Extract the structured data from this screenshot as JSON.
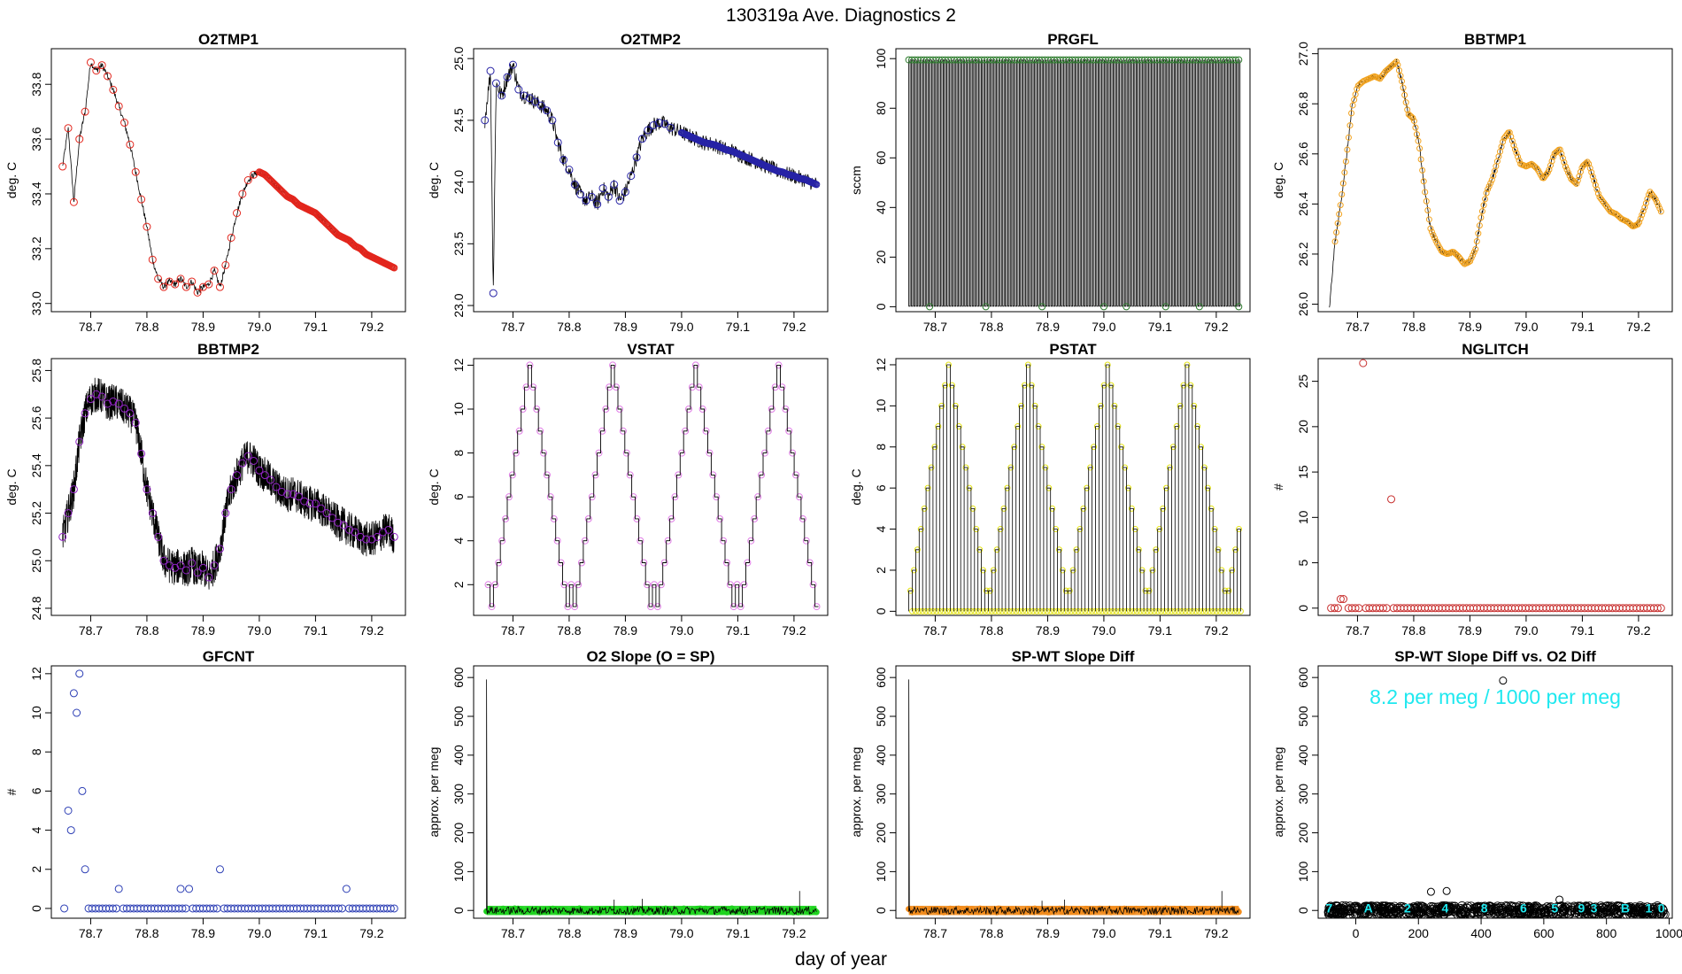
{
  "title": "130319a   Ave. Diagnostics 2",
  "xlabel": "day of year",
  "chart_data": [
    {
      "id": "o2tmp1",
      "type": "line",
      "title": "O2TMP1",
      "ylabel": "deg. C",
      "xlim": [
        78.63,
        79.26
      ],
      "ylim": [
        32.97,
        33.93
      ],
      "xticks": [
        "78.7",
        "78.8",
        "78.9",
        "79.0",
        "79.1",
        "79.2"
      ],
      "yticks": [
        "33.0",
        "33.2",
        "33.4",
        "33.6",
        "33.8"
      ],
      "point_color": "#e3261d",
      "x": [
        78.65,
        78.66,
        78.67,
        78.68,
        78.69,
        78.7,
        78.71,
        78.72,
        78.73,
        78.74,
        78.75,
        78.76,
        78.77,
        78.78,
        78.79,
        78.8,
        78.81,
        78.82,
        78.83,
        78.84,
        78.85,
        78.86,
        78.87,
        78.88,
        78.89,
        78.9,
        78.91,
        78.92,
        78.93,
        78.94,
        78.95,
        78.96,
        78.97,
        78.98,
        78.99,
        79.0,
        79.01,
        79.02,
        79.03,
        79.04,
        79.05,
        79.06,
        79.07,
        79.08,
        79.09,
        79.1,
        79.11,
        79.12,
        79.13,
        79.14,
        79.15,
        79.16,
        79.17,
        79.18,
        79.19,
        79.2,
        79.21,
        79.22,
        79.23,
        79.24
      ],
      "values": [
        33.5,
        33.64,
        33.37,
        33.6,
        33.7,
        33.88,
        33.85,
        33.87,
        33.83,
        33.78,
        33.72,
        33.66,
        33.58,
        33.48,
        33.38,
        33.28,
        33.16,
        33.09,
        33.06,
        33.08,
        33.07,
        33.09,
        33.06,
        33.08,
        33.04,
        33.06,
        33.07,
        33.12,
        33.06,
        33.14,
        33.24,
        33.33,
        33.4,
        33.45,
        33.47,
        33.48,
        33.47,
        33.45,
        33.43,
        33.41,
        33.39,
        33.38,
        33.36,
        33.35,
        33.34,
        33.33,
        33.31,
        33.29,
        33.27,
        33.25,
        33.24,
        33.23,
        33.21,
        33.2,
        33.18,
        33.17,
        33.16,
        33.15,
        33.14,
        33.13
      ]
    },
    {
      "id": "o2tmp2",
      "type": "line",
      "title": "O2TMP2",
      "ylabel": "deg. C",
      "xlim": [
        78.63,
        79.26
      ],
      "ylim": [
        22.95,
        25.08
      ],
      "xticks": [
        "78.7",
        "78.8",
        "78.9",
        "79.0",
        "79.1",
        "79.2"
      ],
      "yticks": [
        "23.0",
        "23.5",
        "24.0",
        "24.5",
        "25.0"
      ],
      "point_color": "#2723a6",
      "x": [
        78.65,
        78.66,
        78.665,
        78.67,
        78.68,
        78.69,
        78.7,
        78.71,
        78.72,
        78.73,
        78.74,
        78.75,
        78.76,
        78.77,
        78.78,
        78.79,
        78.8,
        78.81,
        78.82,
        78.83,
        78.84,
        78.85,
        78.86,
        78.87,
        78.88,
        78.89,
        78.9,
        78.91,
        78.92,
        78.93,
        78.94,
        78.95,
        78.96,
        78.97,
        78.98,
        78.99,
        79.0,
        79.01,
        79.02,
        79.03,
        79.04,
        79.05,
        79.06,
        79.07,
        79.08,
        79.09,
        79.1,
        79.11,
        79.12,
        79.13,
        79.14,
        79.15,
        79.16,
        79.17,
        79.18,
        79.19,
        79.2,
        79.21,
        79.22,
        79.23,
        79.24
      ],
      "values": [
        24.5,
        24.9,
        23.1,
        24.8,
        24.7,
        24.85,
        24.95,
        24.75,
        24.7,
        24.68,
        24.65,
        24.62,
        24.58,
        24.5,
        24.32,
        24.18,
        24.1,
        23.98,
        23.9,
        23.85,
        23.88,
        23.82,
        23.95,
        23.88,
        23.98,
        23.85,
        23.92,
        24.05,
        24.2,
        24.35,
        24.42,
        24.46,
        24.48,
        24.47,
        24.44,
        24.42,
        24.4,
        24.38,
        24.36,
        24.34,
        24.32,
        24.31,
        24.3,
        24.28,
        24.26,
        24.25,
        24.23,
        24.21,
        24.19,
        24.17,
        24.15,
        24.13,
        24.11,
        24.09,
        24.08,
        24.06,
        24.05,
        24.03,
        24.02,
        24.0,
        23.98
      ]
    },
    {
      "id": "prgfl",
      "type": "line",
      "title": "PRGFL",
      "ylabel": "sccm",
      "xlim": [
        78.63,
        79.26
      ],
      "ylim": [
        -2,
        104
      ],
      "xticks": [
        "78.7",
        "78.8",
        "78.9",
        "79.0",
        "79.1",
        "79.2"
      ],
      "yticks": [
        "0",
        "20",
        "40",
        "60",
        "80",
        "100"
      ],
      "point_color": "#2f7d2f",
      "high": 99.5,
      "low": 0.2,
      "xstart": 78.653,
      "xend": 79.24,
      "nsteps": 131,
      "zeros": [
        78.69,
        78.79,
        78.89,
        79.0,
        79.04,
        79.11,
        79.17,
        79.24
      ]
    },
    {
      "id": "bbtmp1",
      "type": "line",
      "title": "BBTMP1",
      "ylabel": "deg. C",
      "xlim": [
        78.63,
        79.26
      ],
      "ylim": [
        25.97,
        27.02
      ],
      "xticks": [
        "78.7",
        "78.8",
        "78.9",
        "79.0",
        "79.1",
        "79.2"
      ],
      "yticks": [
        "26.0",
        "26.2",
        "26.4",
        "26.6",
        "26.8",
        "27.0"
      ],
      "point_color": "#f2a31f",
      "x": [
        78.65,
        78.66,
        78.67,
        78.68,
        78.69,
        78.7,
        78.71,
        78.72,
        78.73,
        78.74,
        78.75,
        78.76,
        78.77,
        78.78,
        78.79,
        78.8,
        78.81,
        78.82,
        78.83,
        78.84,
        78.85,
        78.86,
        78.87,
        78.88,
        78.89,
        78.9,
        78.91,
        78.92,
        78.93,
        78.94,
        78.95,
        78.96,
        78.97,
        78.98,
        78.99,
        79.0,
        79.01,
        79.02,
        79.03,
        79.04,
        79.05,
        79.06,
        79.07,
        79.08,
        79.09,
        79.1,
        79.11,
        79.12,
        79.13,
        79.14,
        79.15,
        79.16,
        79.17,
        79.18,
        79.19,
        79.2,
        79.21,
        79.22,
        79.23,
        79.24
      ],
      "values": [
        25.98,
        26.25,
        26.4,
        26.58,
        26.78,
        26.87,
        26.89,
        26.9,
        26.91,
        26.9,
        26.93,
        26.95,
        26.97,
        26.88,
        26.76,
        26.74,
        26.63,
        26.45,
        26.3,
        26.25,
        26.21,
        26.2,
        26.21,
        26.19,
        26.16,
        26.17,
        26.22,
        26.35,
        26.45,
        26.5,
        26.58,
        26.66,
        26.69,
        26.62,
        26.56,
        26.55,
        26.56,
        26.54,
        26.5,
        26.53,
        26.6,
        26.62,
        26.55,
        26.5,
        26.48,
        26.55,
        26.57,
        26.5,
        26.43,
        26.4,
        26.37,
        26.36,
        26.34,
        26.33,
        26.31,
        26.32,
        26.38,
        26.45,
        26.42,
        26.37
      ]
    },
    {
      "id": "bbtmp2",
      "type": "line",
      "title": "BBTMP2",
      "ylabel": "deg. C",
      "xlim": [
        78.63,
        79.26
      ],
      "ylim": [
        24.77,
        25.85
      ],
      "xticks": [
        "78.7",
        "78.8",
        "78.9",
        "79.0",
        "79.1",
        "79.2"
      ],
      "yticks": [
        "24.8",
        "25.0",
        "25.2",
        "25.4",
        "25.6",
        "25.8"
      ],
      "point_color": "#9124c4",
      "x": [
        78.65,
        78.66,
        78.67,
        78.68,
        78.69,
        78.7,
        78.71,
        78.72,
        78.73,
        78.74,
        78.75,
        78.76,
        78.77,
        78.78,
        78.79,
        78.8,
        78.81,
        78.82,
        78.83,
        78.84,
        78.85,
        78.86,
        78.87,
        78.88,
        78.89,
        78.9,
        78.91,
        78.92,
        78.93,
        78.94,
        78.95,
        78.96,
        78.97,
        78.98,
        78.99,
        79.0,
        79.01,
        79.02,
        79.03,
        79.04,
        79.05,
        79.06,
        79.07,
        79.08,
        79.09,
        79.1,
        79.11,
        79.12,
        79.13,
        79.14,
        79.15,
        79.16,
        79.17,
        79.18,
        79.19,
        79.2,
        79.21,
        79.22,
        79.23,
        79.24
      ],
      "values": [
        25.1,
        25.2,
        25.3,
        25.5,
        25.62,
        25.68,
        25.7,
        25.69,
        25.66,
        25.67,
        25.66,
        25.64,
        25.62,
        25.58,
        25.45,
        25.3,
        25.2,
        25.1,
        25.0,
        24.98,
        24.97,
        24.98,
        24.96,
        24.99,
        24.95,
        24.97,
        24.93,
        24.98,
        25.05,
        25.2,
        25.3,
        25.36,
        25.41,
        25.44,
        25.42,
        25.38,
        25.36,
        25.34,
        25.31,
        25.29,
        25.28,
        25.28,
        25.27,
        25.25,
        25.24,
        25.24,
        25.22,
        25.2,
        25.18,
        25.16,
        25.15,
        25.13,
        25.12,
        25.1,
        25.09,
        25.09,
        25.1,
        25.12,
        25.13,
        25.1
      ]
    },
    {
      "id": "vstat",
      "type": "step",
      "title": "VSTAT",
      "ylabel": "deg. C",
      "xlim": [
        78.63,
        79.26
      ],
      "ylim": [
        0.6,
        12.3
      ],
      "xticks": [
        "78.7",
        "78.8",
        "78.9",
        "79.0",
        "79.1",
        "79.2"
      ],
      "yticks": [
        "2",
        "4",
        "6",
        "8",
        "10",
        "12"
      ],
      "point_color": "#e07ee6",
      "pattern": [
        2,
        1,
        2,
        3,
        4,
        5,
        6,
        7,
        8,
        9,
        10,
        11,
        12,
        11,
        10,
        9,
        8,
        7,
        6,
        5,
        4,
        3,
        2,
        1
      ],
      "xstart": 78.653,
      "step": 0.00615,
      "nsteps": 96
    },
    {
      "id": "pstat",
      "type": "sawtooth",
      "title": "PSTAT",
      "ylabel": "deg. C",
      "xlim": [
        78.63,
        79.26
      ],
      "ylim": [
        -0.2,
        12.3
      ],
      "xticks": [
        "78.7",
        "78.8",
        "78.9",
        "79.0",
        "79.1",
        "79.2"
      ],
      "yticks": [
        "0",
        "2",
        "4",
        "6",
        "8",
        "10",
        "12"
      ],
      "point_color": "#e4e312",
      "pattern": [
        1,
        2,
        3,
        4,
        5,
        6,
        7,
        8,
        9,
        10,
        11,
        12,
        11,
        10,
        9,
        8,
        7,
        6,
        5,
        4,
        3,
        2,
        1
      ],
      "xstart": 78.653,
      "step": 0.00615,
      "nsteps": 96
    },
    {
      "id": "nglitch",
      "type": "scatter",
      "title": "NGLITCH",
      "ylabel": "#",
      "xlim": [
        78.63,
        79.26
      ],
      "ylim": [
        -0.8,
        27.5
      ],
      "xticks": [
        "78.7",
        "78.8",
        "78.9",
        "79.0",
        "79.1",
        "79.2"
      ],
      "yticks": [
        "0",
        "5",
        "10",
        "15",
        "20",
        "25"
      ],
      "point_color": "#c8302f",
      "xstart": 78.653,
      "xend": 79.24,
      "npoints": 96,
      "x": [
        78.67,
        78.675,
        78.71,
        78.76
      ],
      "values": [
        1,
        1,
        27,
        12
      ]
    },
    {
      "id": "gfcnt",
      "type": "scatter",
      "title": "GFCNT",
      "ylabel": "#",
      "xlim": [
        78.63,
        79.26
      ],
      "ylim": [
        -0.5,
        12.4
      ],
      "xticks": [
        "78.7",
        "78.8",
        "78.9",
        "79.0",
        "79.1",
        "79.2"
      ],
      "yticks": [
        "0",
        "2",
        "4",
        "6",
        "8",
        "10",
        "12"
      ],
      "point_color": "#2d3fb5",
      "xstart": 78.653,
      "xend": 79.24,
      "npoints": 96,
      "x": [
        78.66,
        78.665,
        78.67,
        78.675,
        78.68,
        78.685,
        78.69,
        78.75,
        78.86,
        78.875,
        78.93,
        79.155
      ],
      "values": [
        5,
        4,
        11,
        10,
        12,
        6,
        2,
        1,
        1,
        1,
        2,
        1
      ]
    },
    {
      "id": "o2slope",
      "type": "line",
      "title": "O2 Slope (O = SP)",
      "ylabel": "approx. per meg",
      "xlim": [
        78.63,
        79.26
      ],
      "ylim": [
        -20,
        630
      ],
      "xticks": [
        "78.7",
        "78.8",
        "78.9",
        "79.0",
        "79.1",
        "79.2"
      ],
      "yticks": [
        "0",
        "100",
        "200",
        "300",
        "400",
        "500",
        "600"
      ],
      "point_color": "#1fd41f",
      "spike_x": 78.653,
      "spike_value": 595,
      "spikes_small": [
        [
          78.88,
          28
        ],
        [
          78.93,
          30
        ],
        [
          79.21,
          50
        ]
      ]
    },
    {
      "id": "spwt",
      "type": "line",
      "title": "SP-WT Slope Diff",
      "ylabel": "approx. per meg",
      "xlim": [
        78.63,
        79.26
      ],
      "ylim": [
        -20,
        630
      ],
      "xticks": [
        "78.7",
        "78.8",
        "78.9",
        "79.0",
        "79.1",
        "79.2"
      ],
      "yticks": [
        "0",
        "100",
        "200",
        "300",
        "400",
        "500",
        "600"
      ],
      "point_color": "#f28c1c",
      "spike_x": 78.653,
      "spike_value": 595,
      "spikes_small": [
        [
          78.89,
          25
        ],
        [
          78.93,
          28
        ],
        [
          79.21,
          50
        ]
      ]
    },
    {
      "id": "spwtvso2",
      "type": "scatter",
      "title": "SP-WT Slope Diff vs. O2 Diff",
      "ylabel": "approx. per meg",
      "xlim": [
        -120,
        1010
      ],
      "ylim": [
        -20,
        630
      ],
      "xticks": [
        "0",
        "200",
        "400",
        "600",
        "800",
        "1000"
      ],
      "yticks": [
        "0",
        "100",
        "200",
        "300",
        "400",
        "500",
        "600"
      ],
      "point_color": "#000000",
      "annotation": "8.2 per meg / 1000 per meg",
      "annotation_color": "#1fe8ef",
      "outliers": [
        [
          470,
          592
        ],
        [
          240,
          48
        ],
        [
          290,
          50
        ],
        [
          650,
          28
        ]
      ],
      "group_labels": [
        "7",
        "A",
        "2",
        "4",
        "8",
        "6",
        "5",
        "9",
        "3",
        "B",
        "1",
        "0"
      ],
      "group_x": [
        -85,
        40,
        165,
        285,
        410,
        535,
        635,
        720,
        760,
        860,
        935,
        975
      ]
    }
  ]
}
